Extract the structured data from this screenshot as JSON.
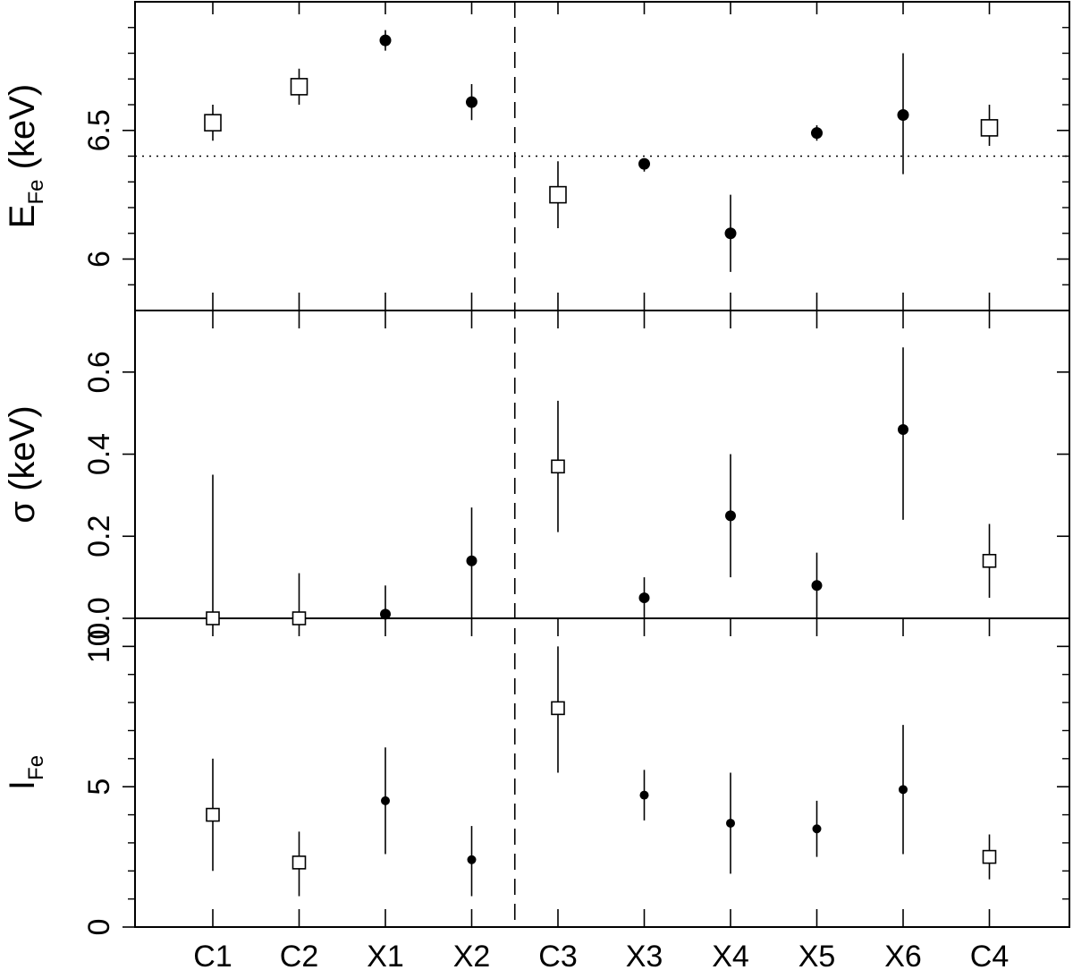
{
  "chart_data": {
    "type": "scatter",
    "categories": [
      "C1",
      "C2",
      "X1",
      "X2",
      "C3",
      "X3",
      "X4",
      "X5",
      "X6",
      "C4"
    ],
    "marker": {
      "open_square": [
        "C1",
        "C2",
        "C3",
        "C4"
      ],
      "filled_circle": [
        "X1",
        "X2",
        "X3",
        "X4",
        "X5",
        "X6"
      ]
    },
    "divider_after": "X2",
    "panels": [
      {
        "id": "energy",
        "ylabel_main": "E",
        "ylabel_sub": "Fe",
        "ylabel_tail": " (keV)",
        "ylim": [
          5.8,
          7.0
        ],
        "major_ticks": [
          6,
          6.5
        ],
        "major_tick_labels": [
          "6",
          "6.5"
        ],
        "minor_ticks": [
          5.9,
          6.1,
          6.2,
          6.3,
          6.4,
          6.6,
          6.7,
          6.8,
          6.9
        ],
        "reference_line": 6.4,
        "values": [
          6.53,
          6.67,
          6.85,
          6.61,
          6.25,
          6.37,
          6.1,
          6.49,
          6.56,
          6.51
        ],
        "err_low": [
          6.46,
          6.6,
          6.81,
          6.54,
          6.12,
          6.34,
          5.95,
          6.46,
          6.33,
          6.44
        ],
        "err_high": [
          6.6,
          6.74,
          6.89,
          6.68,
          6.38,
          6.39,
          6.25,
          6.52,
          6.8,
          6.6
        ]
      },
      {
        "id": "sigma",
        "ylabel_main": "σ (keV)",
        "ylim": [
          0,
          0.75
        ],
        "major_ticks": [
          0,
          0.2,
          0.4,
          0.6
        ],
        "major_tick_labels": [
          "0.0",
          "0.2",
          "0.4",
          "0.6"
        ],
        "reference_line": 0,
        "values": [
          0.0,
          0.0,
          0.01,
          0.14,
          0.37,
          0.05,
          0.25,
          0.08,
          0.46,
          0.14
        ],
        "err_low": [
          0.0,
          0.0,
          0.0,
          0.0,
          0.21,
          0.0,
          0.1,
          0.0,
          0.24,
          0.05
        ],
        "err_high": [
          0.35,
          0.11,
          0.08,
          0.27,
          0.53,
          0.1,
          0.4,
          0.16,
          0.66,
          0.23
        ]
      },
      {
        "id": "intensity",
        "ylabel_main": "I",
        "ylabel_sub": "Fe",
        "ylim": [
          0,
          11
        ],
        "major_ticks": [
          0,
          5,
          10
        ],
        "major_tick_labels": [
          "0",
          "5",
          "10"
        ],
        "minor_ticks": [
          1,
          2,
          3,
          4,
          6,
          7,
          8,
          9
        ],
        "values": [
          4.0,
          2.3,
          4.5,
          2.4,
          7.8,
          4.7,
          3.7,
          3.5,
          4.9,
          2.5
        ],
        "err_low": [
          2.0,
          1.1,
          2.6,
          1.1,
          5.5,
          3.8,
          1.9,
          2.5,
          2.6,
          1.7
        ],
        "err_high": [
          6.0,
          3.4,
          6.4,
          3.6,
          10.0,
          5.6,
          5.5,
          4.5,
          7.2,
          3.3
        ]
      }
    ]
  }
}
